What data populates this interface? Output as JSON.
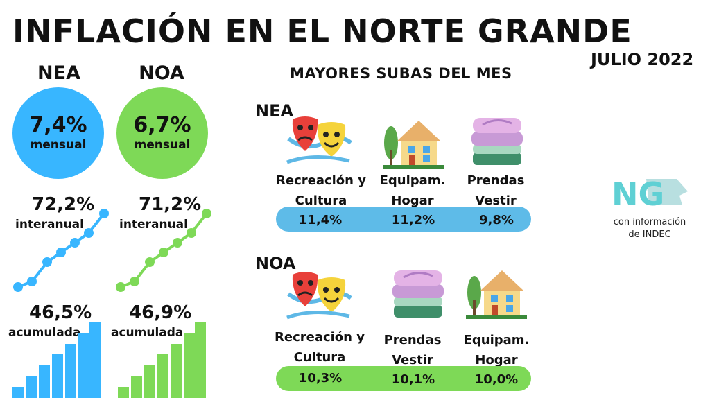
{
  "header": {
    "title": "INFLACIÓN EN EL NORTE GRANDE",
    "date": "JULIO 2022"
  },
  "left": {
    "nea": {
      "name": "NEA",
      "mensual": "7,4%",
      "mensual_label": "mensual",
      "interanual": "72,2%",
      "interanual_label": "interanual",
      "acumulada": "46,5%",
      "acumulada_label": "acumulada"
    },
    "noa": {
      "name": "NOA",
      "mensual": "6,7%",
      "mensual_label": "mensual",
      "interanual": "71,2%",
      "interanual_label": "interanual",
      "acumulada": "46,9%",
      "acumulada_label": "acumulada"
    }
  },
  "subas": {
    "title": "MAYORES SUBAS DEL MES",
    "nea": {
      "label": "NEA",
      "items": [
        {
          "line1": "Recreación y",
          "line2": "Cultura",
          "value": "11,4%",
          "icon": "theater-masks-icon"
        },
        {
          "line1": "Equipam.",
          "line2": "Hogar",
          "value": "11,2%",
          "icon": "house-icon"
        },
        {
          "line1": "Prendas",
          "line2": "Vestir",
          "value": "9,8%",
          "icon": "folded-clothes-icon"
        }
      ]
    },
    "noa": {
      "label": "NOA",
      "items": [
        {
          "line1": "Recreación y",
          "line2": "Cultura",
          "value": "10,3%",
          "icon": "theater-masks-icon"
        },
        {
          "line1": "Prendas",
          "line2": "Vestir",
          "value": "10,1%",
          "icon": "folded-clothes-icon"
        },
        {
          "line1": "Equipam.",
          "line2": "Hogar",
          "value": "10,0%",
          "icon": "house-icon"
        }
      ]
    }
  },
  "logo": {
    "text": "NG",
    "sub1": "con información",
    "sub2": "de INDEC"
  },
  "colors": {
    "nea": "#38b6ff",
    "noa": "#7ed957",
    "pill_nea": "#5ebbe8",
    "pill_noa": "#7ed957"
  }
}
